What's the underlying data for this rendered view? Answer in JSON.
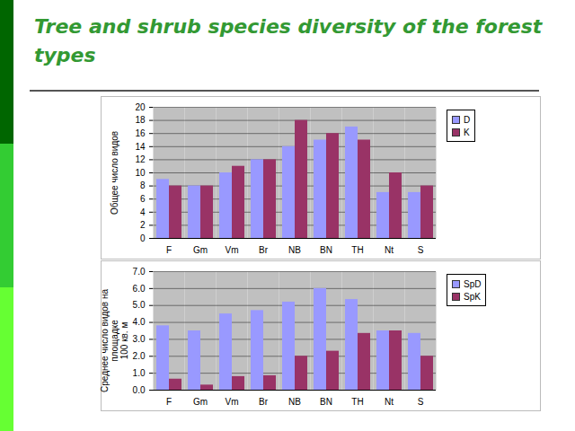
{
  "title": "Tree and shrub species diversity of the forest types",
  "chart_data": [
    {
      "type": "bar",
      "ylabel": "Общее число видов",
      "categories": [
        "F",
        "Gm",
        "Vm",
        "Br",
        "NB",
        "BN",
        "TH",
        "Nt",
        "S"
      ],
      "series": [
        {
          "name": "D",
          "color": "#9999ff",
          "values": [
            9,
            8,
            10,
            12,
            14,
            15,
            17,
            7,
            7
          ]
        },
        {
          "name": "K",
          "color": "#993366",
          "values": [
            8,
            8,
            11,
            12,
            18,
            16,
            15,
            10,
            8
          ]
        }
      ],
      "ylim": [
        0,
        20
      ],
      "yticks": [
        0,
        2,
        4,
        6,
        8,
        10,
        12,
        14,
        16,
        18,
        20
      ],
      "grid": true,
      "legend": "right"
    },
    {
      "type": "bar",
      "ylabel": "Среднее число видов на площадке\n100 кв. м",
      "categories": [
        "F",
        "Gm",
        "Vm",
        "Br",
        "NB",
        "BN",
        "TH",
        "Nt",
        "S"
      ],
      "series": [
        {
          "name": "SpD",
          "color": "#9999ff",
          "values": [
            3.8,
            3.5,
            4.5,
            4.7,
            5.2,
            6.0,
            5.35,
            3.5,
            3.35
          ]
        },
        {
          "name": "SpK",
          "color": "#993366",
          "values": [
            0.65,
            0.3,
            0.8,
            0.85,
            2.0,
            2.3,
            3.35,
            3.5,
            2.0
          ]
        }
      ],
      "ylim": [
        0,
        7
      ],
      "yticks": [
        0,
        1,
        2,
        3,
        4,
        5,
        6,
        7
      ],
      "grid": true,
      "legend": "right"
    }
  ]
}
